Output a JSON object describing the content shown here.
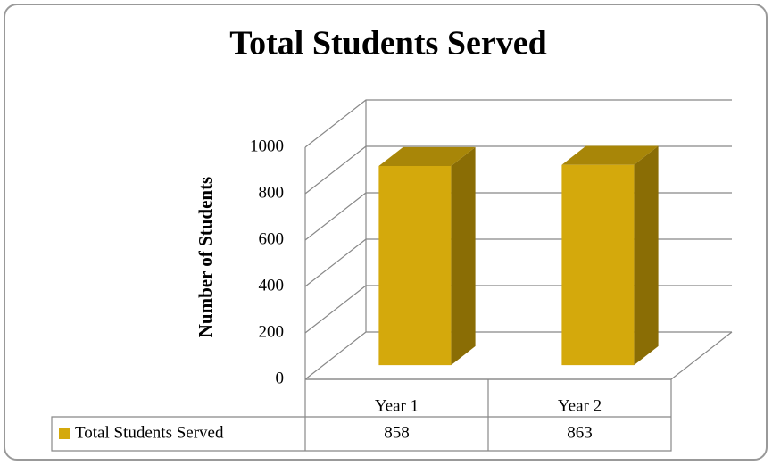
{
  "chart_data": {
    "type": "bar3d",
    "title": "Total Students Served",
    "y_label": "Number of Students",
    "categories": [
      "Year 1",
      "Year 2"
    ],
    "series": [
      {
        "name": "Total Students Served",
        "color": "#d4a90c",
        "values": [
          858,
          863
        ]
      }
    ],
    "ylim": [
      0,
      1000
    ],
    "yticks": [
      0,
      200,
      400,
      600,
      800,
      1000
    ],
    "grid": true,
    "data_table": true
  }
}
